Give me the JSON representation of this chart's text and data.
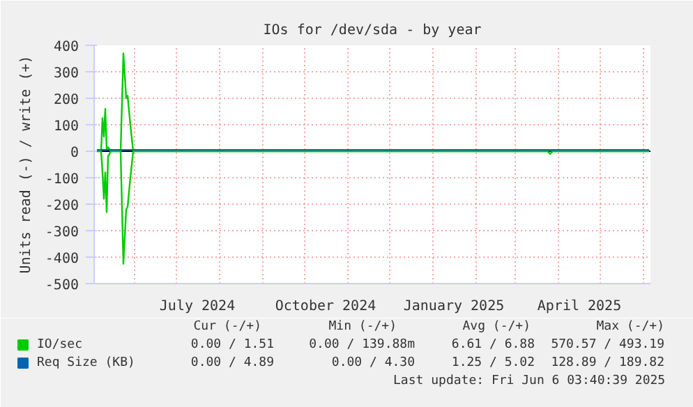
{
  "chart_data": {
    "type": "line",
    "title": "IOs for /dev/sda - by year",
    "ylabel": "Units read (-) / write (+)",
    "xlim": [
      "2024-05-03",
      "2025-06-06"
    ],
    "ylim": [
      -500,
      400
    ],
    "yticks": [
      -500,
      -400,
      -300,
      -200,
      -100,
      0,
      100,
      200,
      300,
      400
    ],
    "xticks": [
      {
        "value": "2024-06-01",
        "label": null
      },
      {
        "value": "2024-07-01",
        "label": null
      },
      {
        "value": "2024-07-16",
        "label": "July 2024"
      },
      {
        "value": "2024-08-01",
        "label": null
      },
      {
        "value": "2024-09-01",
        "label": null
      },
      {
        "value": "2024-10-01",
        "label": null
      },
      {
        "value": "2024-10-16",
        "label": "October 2024"
      },
      {
        "value": "2024-11-01",
        "label": null
      },
      {
        "value": "2024-12-01",
        "label": null
      },
      {
        "value": "2025-01-01",
        "label": null
      },
      {
        "value": "2025-01-16",
        "label": "January 2025"
      },
      {
        "value": "2025-02-01",
        "label": null
      },
      {
        "value": "2025-03-01",
        "label": null
      },
      {
        "value": "2025-04-01",
        "label": null
      },
      {
        "value": "2025-04-16",
        "label": "April 2025"
      },
      {
        "value": "2025-05-01",
        "label": null
      },
      {
        "value": "2025-06-01",
        "label": null
      }
    ],
    "grid": true,
    "legend": "bottom left",
    "ref_lines": [
      {
        "axis": "y",
        "value": 0,
        "label": null,
        "color": "#000000"
      }
    ],
    "series": [
      {
        "name": "IO/sec",
        "color": "#00cc00",
        "x": [
          "2024-05-05",
          "2024-05-08",
          "2024-05-09",
          "2024-05-10",
          "2024-05-11",
          "2024-05-12",
          "2024-05-13",
          "2024-05-15",
          "2024-05-22",
          "2024-05-24",
          "2024-05-26",
          "2024-05-27",
          "2024-05-29",
          "2024-05-31",
          "2025-03-24",
          "2025-03-26",
          "2025-03-28",
          "2025-06-05"
        ],
        "values": [
          0,
          0,
          125,
          55,
          160,
          10,
          15,
          0,
          0,
          370,
          200,
          210,
          100,
          0,
          0,
          5,
          0,
          0
        ]
      },
      {
        "color": "#00cc00",
        "x": [
          "2024-05-05",
          "2024-05-08",
          "2024-05-09",
          "2024-05-10",
          "2024-05-11",
          "2024-05-12",
          "2024-05-13",
          "2024-05-15",
          "2024-05-22",
          "2024-05-24",
          "2024-05-26",
          "2024-05-27",
          "2024-05-29",
          "2024-05-31",
          "2025-03-24",
          "2025-03-26",
          "2025-03-28",
          "2025-06-05"
        ],
        "values": [
          0,
          0,
          -80,
          -180,
          -80,
          -230,
          -20,
          0,
          0,
          -425,
          -220,
          -210,
          -100,
          0,
          0,
          -10,
          0,
          0
        ]
      },
      {
        "name": "Req Size (KB)",
        "color": "#0066b3",
        "x": [
          "2024-05-05",
          "2025-06-05"
        ],
        "values": [
          5,
          5
        ]
      }
    ],
    "annotations": [
      "Cur (-/+)",
      "Min (-/+)",
      "Avg (-/+)",
      "Max (-/+)",
      "0.00 / 1.51",
      "0.00 / 139.88m",
      "6.61 / 6.88",
      "570.57 / 493.19",
      "0.00 / 4.89",
      "0.00 / 4.30",
      "1.25 / 5.02",
      "128.89 / 189.82",
      "Last update: Fri Jun  6 03:40:39 2025"
    ]
  }
}
